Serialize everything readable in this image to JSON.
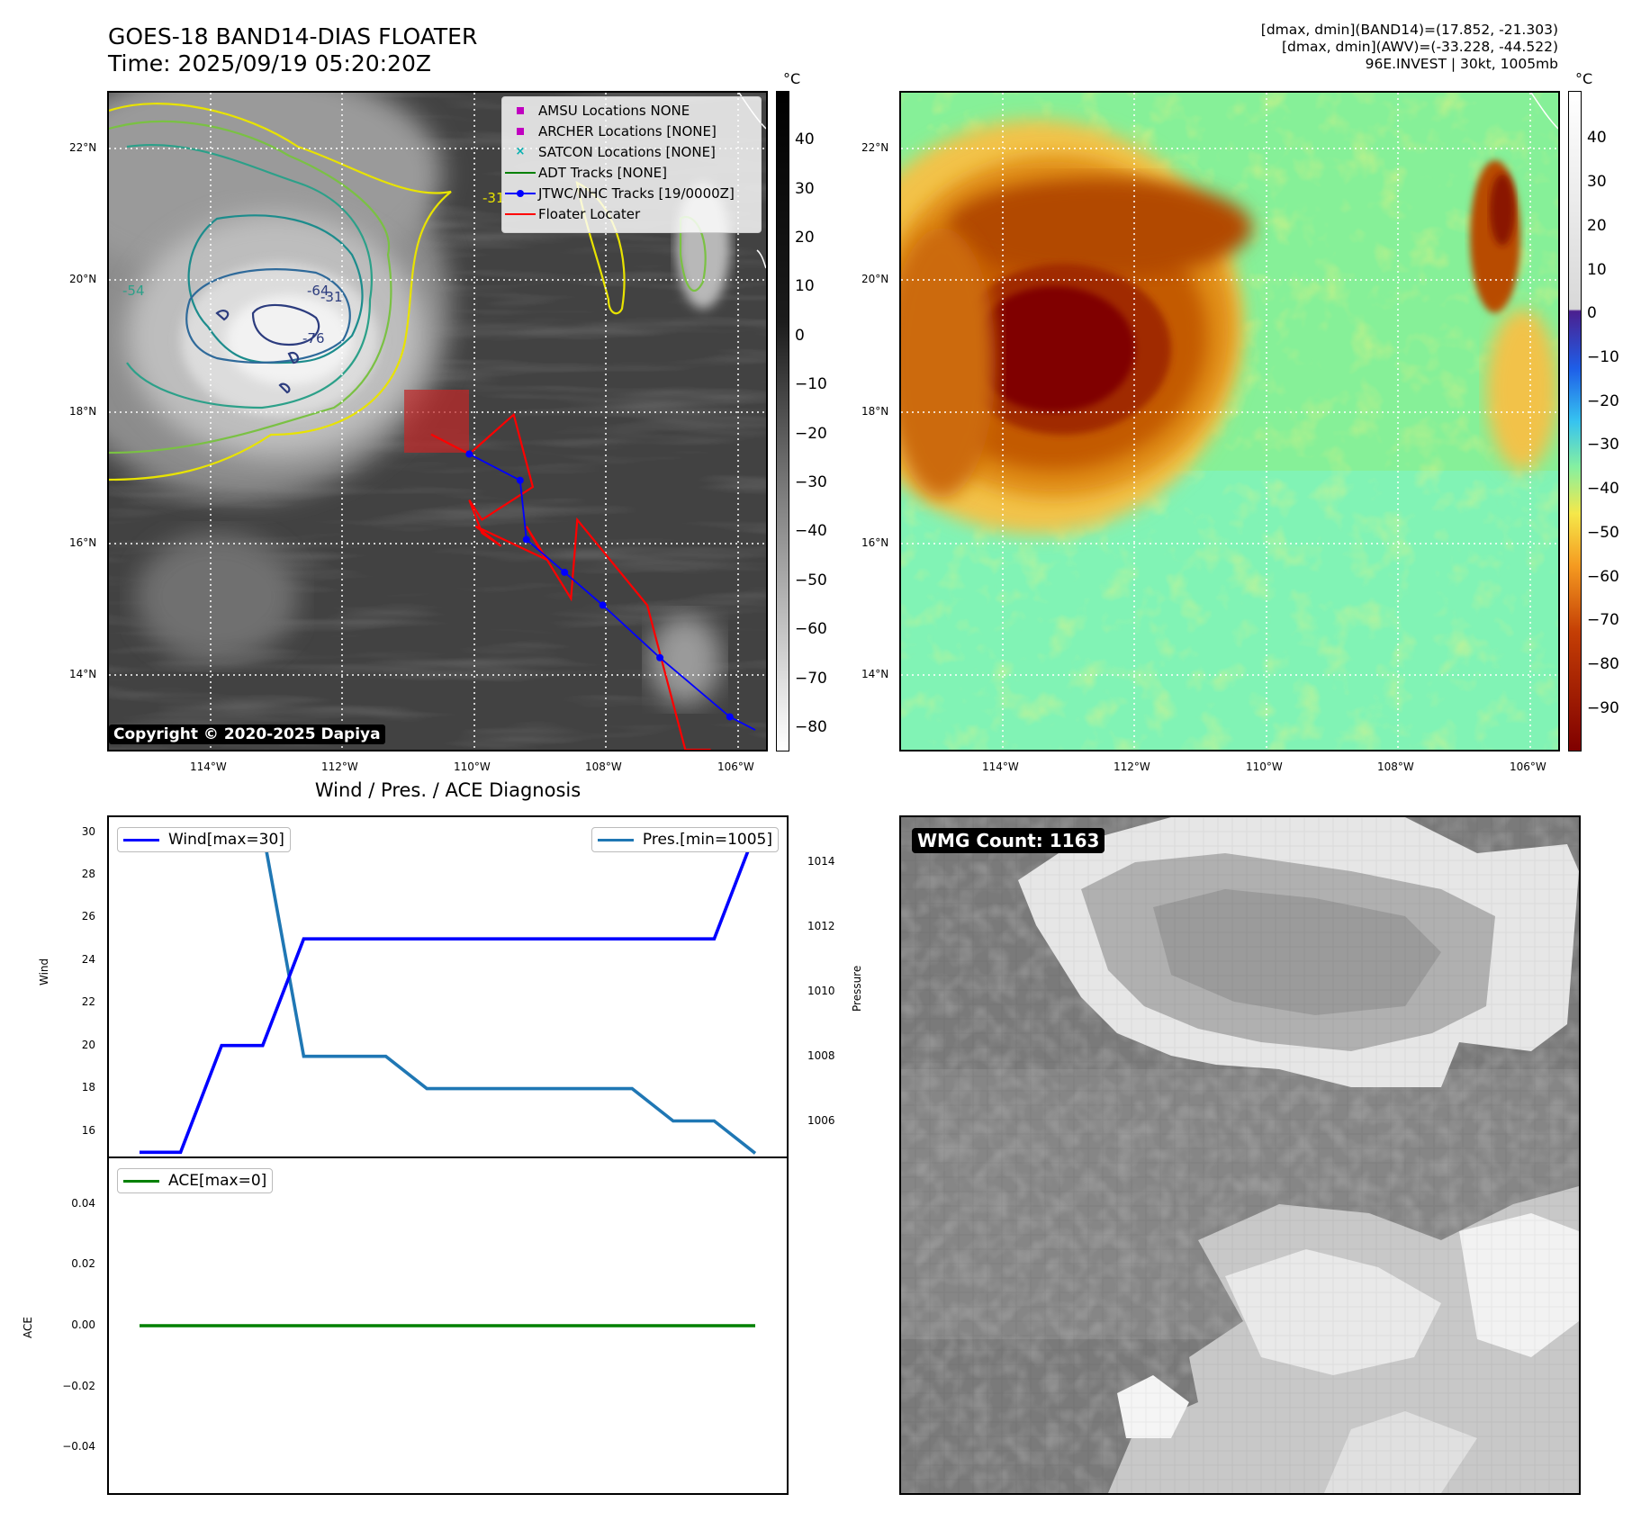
{
  "header": {
    "title_line1": "GOES-18 BAND14-DIAS FLOATER",
    "title_line2": "Time: 2025/09/19 05:20:20Z",
    "right_line1": "[dmax, dmin](BAND14)=(17.852, -21.303)",
    "right_line2": "[dmax, dmin](AWV)=(-33.228, -44.522)",
    "right_line3": "96E.INVEST | 30kt, 1005mb"
  },
  "map_axes": {
    "lat_ticks": [
      "22°N",
      "20°N",
      "18°N",
      "16°N",
      "14°N"
    ],
    "lon_ticks": [
      "114°W",
      "112°W",
      "110°W",
      "108°W",
      "106°W"
    ]
  },
  "ir_panel": {
    "colorbar_unit": "°C",
    "colorbar_ticks": [
      "40",
      "30",
      "20",
      "10",
      "0",
      "−10",
      "−20",
      "−30",
      "−40",
      "−50",
      "−60",
      "−70",
      "−80"
    ],
    "contour_labels": [
      "-31",
      "-54",
      "-64",
      "-76",
      "-31"
    ],
    "legend": [
      {
        "label": "AMSU Locations NONE",
        "symbol": "square",
        "color": "#c000c0"
      },
      {
        "label": "ARCHER Locations [NONE]",
        "symbol": "square",
        "color": "#c000c0"
      },
      {
        "label": "SATCON Locations [NONE]",
        "symbol": "x",
        "color": "#00b0b0"
      },
      {
        "label": "ADT Tracks [NONE]",
        "symbol": "line",
        "color": "#008000"
      },
      {
        "label": "JTWC/NHC Tracks [19/0000Z]",
        "symbol": "line-dot",
        "color": "#0000ff"
      },
      {
        "label": "Floater Locater",
        "symbol": "line",
        "color": "#ff0000"
      }
    ],
    "copyright": "Copyright © 2020-2025 Dapiya"
  },
  "wv_panel": {
    "colorbar_unit": "°C",
    "colorbar_ticks": [
      "40",
      "30",
      "20",
      "10",
      "0",
      "−10",
      "−20",
      "−30",
      "−40",
      "−50",
      "−60",
      "−70",
      "−80",
      "−90"
    ]
  },
  "diag": {
    "title": "Wind / Pres. / ACE Diagnosis",
    "wind_legend": "Wind[max=30]",
    "pres_legend": "Pres.[min=1005]",
    "ace_legend": "ACE[max=0]",
    "wind_ylabel": "Wind",
    "pres_ylabel": "Pressure",
    "ace_ylabel": "ACE",
    "wind_ticks": [
      "30",
      "28",
      "26",
      "24",
      "22",
      "20",
      "18",
      "16"
    ],
    "pres_ticks": [
      "1014",
      "1012",
      "1010",
      "1008",
      "1006"
    ],
    "ace_ticks": [
      "0.04",
      "0.02",
      "0.00",
      "−0.02",
      "−0.04"
    ]
  },
  "wmg": {
    "label": "WMG Count: 1163"
  },
  "chart_data": [
    {
      "type": "line",
      "title": "Wind / Pres. / ACE Diagnosis",
      "x": [
        0,
        1,
        2,
        3,
        4,
        5,
        6,
        7,
        8,
        9,
        10,
        11,
        12,
        13,
        14,
        15
      ],
      "series": [
        {
          "name": "Wind[max=30]",
          "color": "#0000ff",
          "axis": "left",
          "values": [
            15,
            15,
            20,
            20,
            25,
            25,
            25,
            25,
            25,
            25,
            25,
            25,
            25,
            25,
            25,
            30
          ]
        },
        {
          "name": "Pres.[min=1005]",
          "color": "#1f77b4",
          "axis": "right",
          "values": [
            1015,
            1015,
            1015,
            1015,
            1008,
            1008,
            1008,
            1007,
            1007,
            1007,
            1007,
            1007,
            1007,
            1006,
            1006,
            1005
          ]
        }
      ],
      "ylim_left": [
        14.8,
        30.7
      ],
      "ylim_right": [
        1004.9,
        1015.4
      ],
      "ylabel": "Wind",
      "ylabel_right": "Pressure"
    },
    {
      "type": "line",
      "x": [
        0,
        15
      ],
      "series": [
        {
          "name": "ACE[max=0]",
          "color": "#008000",
          "values": [
            0,
            0
          ]
        }
      ],
      "ylim": [
        -0.055,
        0.055
      ],
      "ylabel": "ACE"
    }
  ],
  "map_tracks": {
    "jtwc_points_deg": [
      [
        -110.0,
        17.5
      ],
      [
        -109.2,
        17.1
      ],
      [
        -109.1,
        16.2
      ],
      [
        -108.5,
        15.7
      ],
      [
        -107.9,
        15.2
      ],
      [
        -107.0,
        14.4
      ],
      [
        -105.9,
        13.5
      ],
      [
        -105.5,
        13.3
      ]
    ],
    "floater_locater_deg": [
      [
        -110.6,
        17.8
      ],
      [
        -110.0,
        17.5
      ],
      [
        -109.3,
        18.1
      ],
      [
        -109.0,
        17.0
      ],
      [
        -109.8,
        16.5
      ],
      [
        -110.0,
        16.8
      ],
      [
        -109.8,
        16.3
      ],
      [
        -109.5,
        16.1
      ],
      [
        -109.9,
        16.4
      ],
      [
        -108.8,
        15.9
      ],
      [
        -109.1,
        16.4
      ],
      [
        -108.4,
        15.3
      ],
      [
        -108.3,
        16.5
      ],
      [
        -107.2,
        15.2
      ],
      [
        -106.6,
        13.0
      ],
      [
        -106.2,
        13.0
      ]
    ]
  }
}
